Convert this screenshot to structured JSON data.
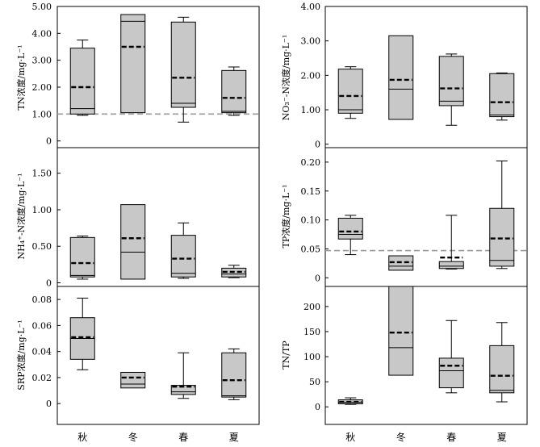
{
  "chart_data": [
    {
      "id": "tn",
      "type": "box",
      "ylabel": "TN浓度/mg·L⁻¹",
      "ylim": [
        -0.25,
        5.0
      ],
      "yticks": [
        0,
        1.0,
        2.0,
        3.0,
        4.0,
        5.0
      ],
      "ytick_labels": [
        "0",
        "1.00",
        "2.00",
        "3.00",
        "4.00",
        "5.00"
      ],
      "categories": [
        "秋",
        "冬",
        "春",
        "夏"
      ],
      "boxes": [
        {
          "min": 0.95,
          "q1": 1.0,
          "median": 1.2,
          "q3": 3.45,
          "max": 3.75,
          "mean": 2.0
        },
        {
          "min": 1.05,
          "q1": 1.05,
          "median": 4.45,
          "q3": 4.7,
          "max": 4.7,
          "mean": 3.5
        },
        {
          "min": 0.7,
          "q1": 1.25,
          "median": 1.4,
          "q3": 4.42,
          "max": 4.6,
          "mean": 2.35
        },
        {
          "min": 0.95,
          "q1": 1.05,
          "median": 1.1,
          "q3": 2.62,
          "max": 2.75,
          "mean": 1.6
        }
      ],
      "reference_line": 1.0
    },
    {
      "id": "no3",
      "type": "box",
      "ylabel": "NO₃⁻-N浓度/mg·L⁻¹",
      "ylim": [
        -0.1,
        4.0
      ],
      "yticks": [
        0,
        1.0,
        2.0,
        3.0,
        4.0
      ],
      "ytick_labels": [
        "0",
        "1.00",
        "2.00",
        "3.00",
        "4.00"
      ],
      "categories": [
        "秋",
        "冬",
        "春",
        "夏"
      ],
      "boxes": [
        {
          "min": 0.75,
          "q1": 0.9,
          "median": 1.0,
          "q3": 2.18,
          "max": 2.25,
          "mean": 1.4
        },
        {
          "min": 0.72,
          "q1": 0.72,
          "median": 1.6,
          "q3": 3.15,
          "max": 3.15,
          "mean": 1.87
        },
        {
          "min": 0.55,
          "q1": 1.12,
          "median": 1.25,
          "q3": 2.55,
          "max": 2.62,
          "mean": 1.62
        },
        {
          "min": 0.7,
          "q1": 0.8,
          "median": 0.85,
          "q3": 2.05,
          "max": 2.07,
          "mean": 1.22
        }
      ]
    },
    {
      "id": "nh4",
      "type": "box",
      "ylabel": "NH₄⁺-N浓度/mg·L⁻¹",
      "ylim": [
        -0.05,
        1.85
      ],
      "yticks": [
        0,
        0.5,
        1.0,
        1.5
      ],
      "ytick_labels": [
        "0",
        "0.50",
        "1.00",
        "1.50"
      ],
      "categories": [
        "秋",
        "冬",
        "春",
        "夏"
      ],
      "boxes": [
        {
          "min": 0.05,
          "q1": 0.08,
          "median": 0.1,
          "q3": 0.62,
          "max": 0.64,
          "mean": 0.27
        },
        {
          "min": 0.05,
          "q1": 0.05,
          "median": 0.42,
          "q3": 1.07,
          "max": 1.07,
          "mean": 0.61
        },
        {
          "min": 0.06,
          "q1": 0.08,
          "median": 0.13,
          "q3": 0.65,
          "max": 0.82,
          "mean": 0.33
        },
        {
          "min": 0.07,
          "q1": 0.08,
          "median": 0.12,
          "q3": 0.2,
          "max": 0.24,
          "mean": 0.15
        }
      ]
    },
    {
      "id": "tp",
      "type": "box",
      "ylabel": "TP浓度/mg·L⁻¹",
      "ylim": [
        -0.015,
        0.225
      ],
      "yticks": [
        0,
        0.05,
        0.1,
        0.15,
        0.2
      ],
      "ytick_labels": [
        "0",
        "0.05",
        "0.10",
        "0.15",
        "0.20"
      ],
      "categories": [
        "秋",
        "冬",
        "春",
        "夏"
      ],
      "boxes": [
        {
          "min": 0.04,
          "q1": 0.067,
          "median": 0.075,
          "q3": 0.103,
          "max": 0.108,
          "mean": 0.08
        },
        {
          "min": 0.013,
          "q1": 0.013,
          "median": 0.02,
          "q3": 0.038,
          "max": 0.038,
          "mean": 0.027
        },
        {
          "min": 0.015,
          "q1": 0.016,
          "median": 0.02,
          "q3": 0.028,
          "max": 0.108,
          "mean": 0.035
        },
        {
          "min": 0.016,
          "q1": 0.02,
          "median": 0.03,
          "q3": 0.12,
          "max": 0.202,
          "mean": 0.068
        }
      ],
      "reference_line": 0.047
    },
    {
      "id": "srp",
      "type": "box",
      "ylabel": "SRP浓度/mg·L⁻¹",
      "ylim": [
        -0.016,
        0.09
      ],
      "yticks": [
        0,
        0.02,
        0.04,
        0.06,
        0.08
      ],
      "ytick_labels": [
        "0",
        "0.02",
        "0.04",
        "0.06",
        "0.08"
      ],
      "categories": [
        "秋",
        "冬",
        "春",
        "夏"
      ],
      "boxes": [
        {
          "min": 0.026,
          "q1": 0.034,
          "median": 0.05,
          "q3": 0.066,
          "max": 0.081,
          "mean": 0.051
        },
        {
          "min": 0.012,
          "q1": 0.012,
          "median": 0.015,
          "q3": 0.024,
          "max": 0.024,
          "mean": 0.02
        },
        {
          "min": 0.004,
          "q1": 0.007,
          "median": 0.009,
          "q3": 0.014,
          "max": 0.039,
          "mean": 0.013
        },
        {
          "min": 0.003,
          "q1": 0.005,
          "median": 0.006,
          "q3": 0.039,
          "max": 0.042,
          "mean": 0.018
        }
      ]
    },
    {
      "id": "tntp",
      "type": "box",
      "ylabel": "TN/TP",
      "ylim": [
        -35,
        240
      ],
      "yticks": [
        0,
        50,
        100,
        150,
        200
      ],
      "ytick_labels": [
        "0",
        "50",
        "100",
        "150",
        "200"
      ],
      "categories": [
        "秋",
        "冬",
        "春",
        "夏"
      ],
      "boxes": [
        {
          "min": 5,
          "q1": 6,
          "median": 9,
          "q3": 14,
          "max": 18,
          "mean": 10
        },
        {
          "min": 63,
          "q1": 63,
          "median": 118,
          "q3": 240,
          "max": 240,
          "mean": 148
        },
        {
          "min": 28,
          "q1": 38,
          "median": 72,
          "q3": 97,
          "max": 172,
          "mean": 82
        },
        {
          "min": 10,
          "q1": 28,
          "median": 33,
          "q3": 122,
          "max": 168,
          "mean": 62
        }
      ]
    }
  ]
}
